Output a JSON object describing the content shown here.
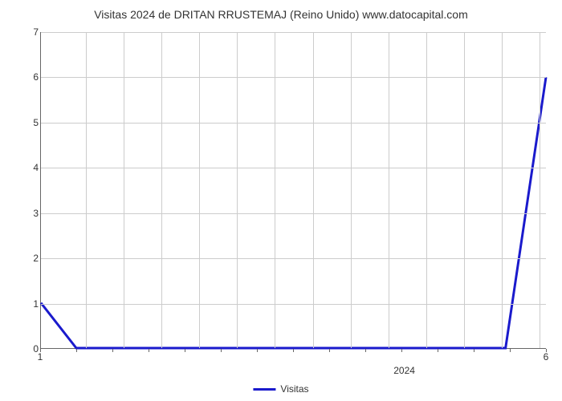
{
  "chart": {
    "type": "line",
    "title": "Visitas 2024 de DRITAN RRUSTEMAJ (Reino Unido) www.datocapital.com",
    "title_fontsize": 14,
    "title_color": "#333333",
    "background_color": "#ffffff",
    "grid_color": "#cccccc",
    "axis_color": "#666666",
    "line_color": "#1a1acc",
    "line_width": 3,
    "ylim": [
      0,
      7
    ],
    "ytick_step": 1,
    "y_ticks": [
      0,
      1,
      2,
      3,
      4,
      5,
      6,
      7
    ],
    "x_ticks_labels": [
      "1",
      "6"
    ],
    "x_ticks_positions": [
      0,
      1
    ],
    "x_minor_tick_count": 14,
    "x_axis_text": "2024",
    "x_axis_text_position": 0.72,
    "data_points": [
      {
        "x": 0.0,
        "y": 1.0
      },
      {
        "x": 0.07,
        "y": 0.0
      },
      {
        "x": 0.92,
        "y": 0.0
      },
      {
        "x": 1.0,
        "y": 6.0
      }
    ],
    "legend": {
      "label": "Visitas",
      "position": "bottom-center"
    }
  }
}
